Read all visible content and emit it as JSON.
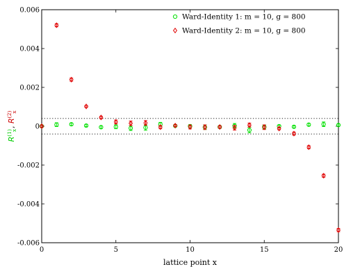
{
  "chart_data": {
    "type": "scatter",
    "xlabel": "lattice point x",
    "ylabel_parts": [
      "R",
      "(1)",
      "x",
      ",",
      "R",
      "(2)",
      "x"
    ],
    "ylabel_colors": [
      "#00cc00",
      "#00cc00",
      "#00cc00",
      "#000000",
      "#cc0000",
      "#cc0000",
      "#cc0000"
    ],
    "xlim": [
      0,
      20
    ],
    "ylim": [
      -0.006,
      0.006
    ],
    "xticks": [
      0,
      5,
      10,
      15,
      20
    ],
    "xtick_labels": [
      "0",
      "5",
      "10",
      "15",
      "20"
    ],
    "yticks": [
      -0.006,
      -0.004,
      -0.002,
      0,
      0.002,
      0.004,
      0.006
    ],
    "ytick_labels": [
      "-0.006",
      "-0.004",
      "-0.002",
      "0",
      "0.002",
      "0.004",
      "0.006"
    ],
    "band": [
      -0.0004,
      0.0004
    ],
    "grid": false,
    "legend_position": "top-right",
    "series": [
      {
        "name": "Ward-Identity 1: m = 10, g = 800",
        "marker": "circle",
        "color": "#00e000",
        "x": [
          0,
          1,
          2,
          3,
          4,
          5,
          6,
          7,
          8,
          9,
          10,
          11,
          12,
          13,
          14,
          15,
          16,
          17,
          18,
          19,
          20
        ],
        "y": [
          0.0,
          8e-05,
          0.0001,
          3e-05,
          -5e-05,
          -3e-05,
          -0.0001,
          -7e-05,
          0.0001,
          2e-05,
          0.0,
          -5e-05,
          -4e-05,
          2e-05,
          -0.0002,
          -4e-05,
          0.0,
          -3e-05,
          8e-05,
          0.0001,
          6e-05
        ],
        "err": [
          5e-05,
          0.0001,
          6e-05,
          5e-05,
          6e-05,
          0.0001,
          0.00012,
          0.00014,
          0.0001,
          5e-05,
          8e-05,
          0.00012,
          6e-05,
          0.00012,
          0.00014,
          0.0001,
          5e-05,
          5e-05,
          6e-05,
          0.00012,
          5e-05
        ]
      },
      {
        "name": "Ward-Identity 2: m = 10, g = 800",
        "marker": "diamond",
        "color": "#e00000",
        "x": [
          0,
          1,
          2,
          3,
          4,
          5,
          6,
          7,
          8,
          9,
          10,
          11,
          12,
          13,
          14,
          15,
          16,
          17,
          18,
          19,
          20
        ],
        "y": [
          0.0,
          0.0052,
          0.0024,
          0.00102,
          0.00045,
          0.00022,
          0.00015,
          0.00017,
          -5e-05,
          3e-05,
          -4e-05,
          -5e-05,
          -4e-05,
          -8e-05,
          6e-05,
          -5e-05,
          -0.00012,
          -0.00038,
          -0.00108,
          -0.00255,
          -0.00535
        ],
        "err": [
          6e-05,
          8e-05,
          8e-05,
          5e-05,
          6e-05,
          0.0001,
          0.00012,
          0.00012,
          8e-05,
          5e-05,
          0.0001,
          0.00012,
          6e-05,
          0.00012,
          0.0001,
          0.00012,
          6e-05,
          8e-05,
          8e-05,
          8e-05,
          8e-05
        ]
      }
    ]
  }
}
